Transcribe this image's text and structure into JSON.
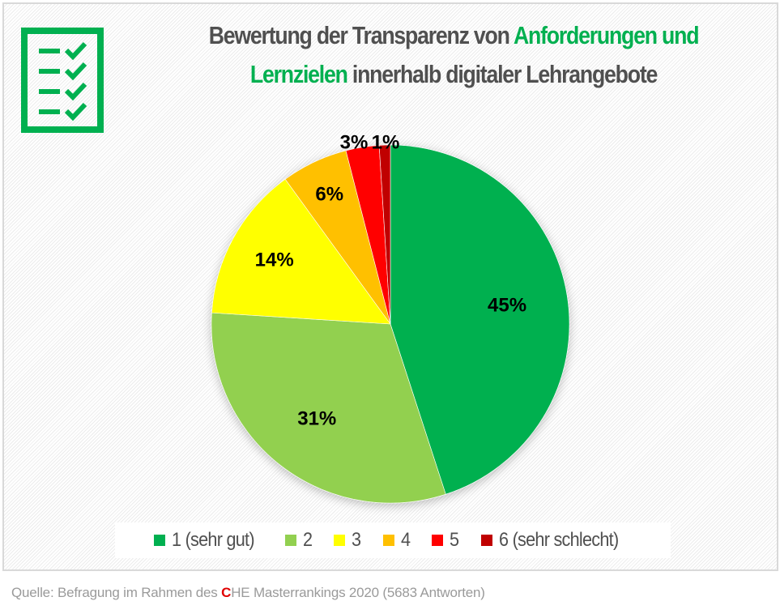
{
  "title": {
    "part1": "Bewertung der Transparenz von ",
    "highlight1": "Anforderungen und",
    "highlight2": "Lernzielen",
    "part2": " innerhalb digitaler Lehrangebote"
  },
  "logo_icon": "checklist-icon",
  "colors": {
    "accent": "#00b050",
    "title_text": "#505050",
    "source_text": "#9a9a9a",
    "brand_red": "#e00000"
  },
  "source": {
    "prefix": "Quelle: Befragung im Rahmen des ",
    "brand_c": "C",
    "suffix": "HE Masterrankings 2020 (5683 Antworten)"
  },
  "chart_data": {
    "type": "pie",
    "title": "Bewertung der Transparenz von Anforderungen und Lernzielen innerhalb digitaler Lehrangebote",
    "start": "12 o'clock, clockwise",
    "legend_position": "bottom",
    "slices": [
      {
        "label": "1 (sehr gut)",
        "value": 45,
        "display": "45%",
        "color": "#00b050"
      },
      {
        "label": "2",
        "value": 31,
        "display": "31%",
        "color": "#92d050"
      },
      {
        "label": "3",
        "value": 14,
        "display": "14%",
        "color": "#ffff00"
      },
      {
        "label": "4",
        "value": 6,
        "display": "6%",
        "color": "#ffc000"
      },
      {
        "label": "5",
        "value": 3,
        "display": "3%",
        "color": "#ff0000"
      },
      {
        "label": "6 (sehr schlecht)",
        "value": 1,
        "display": "1%",
        "color": "#c00000"
      }
    ]
  }
}
